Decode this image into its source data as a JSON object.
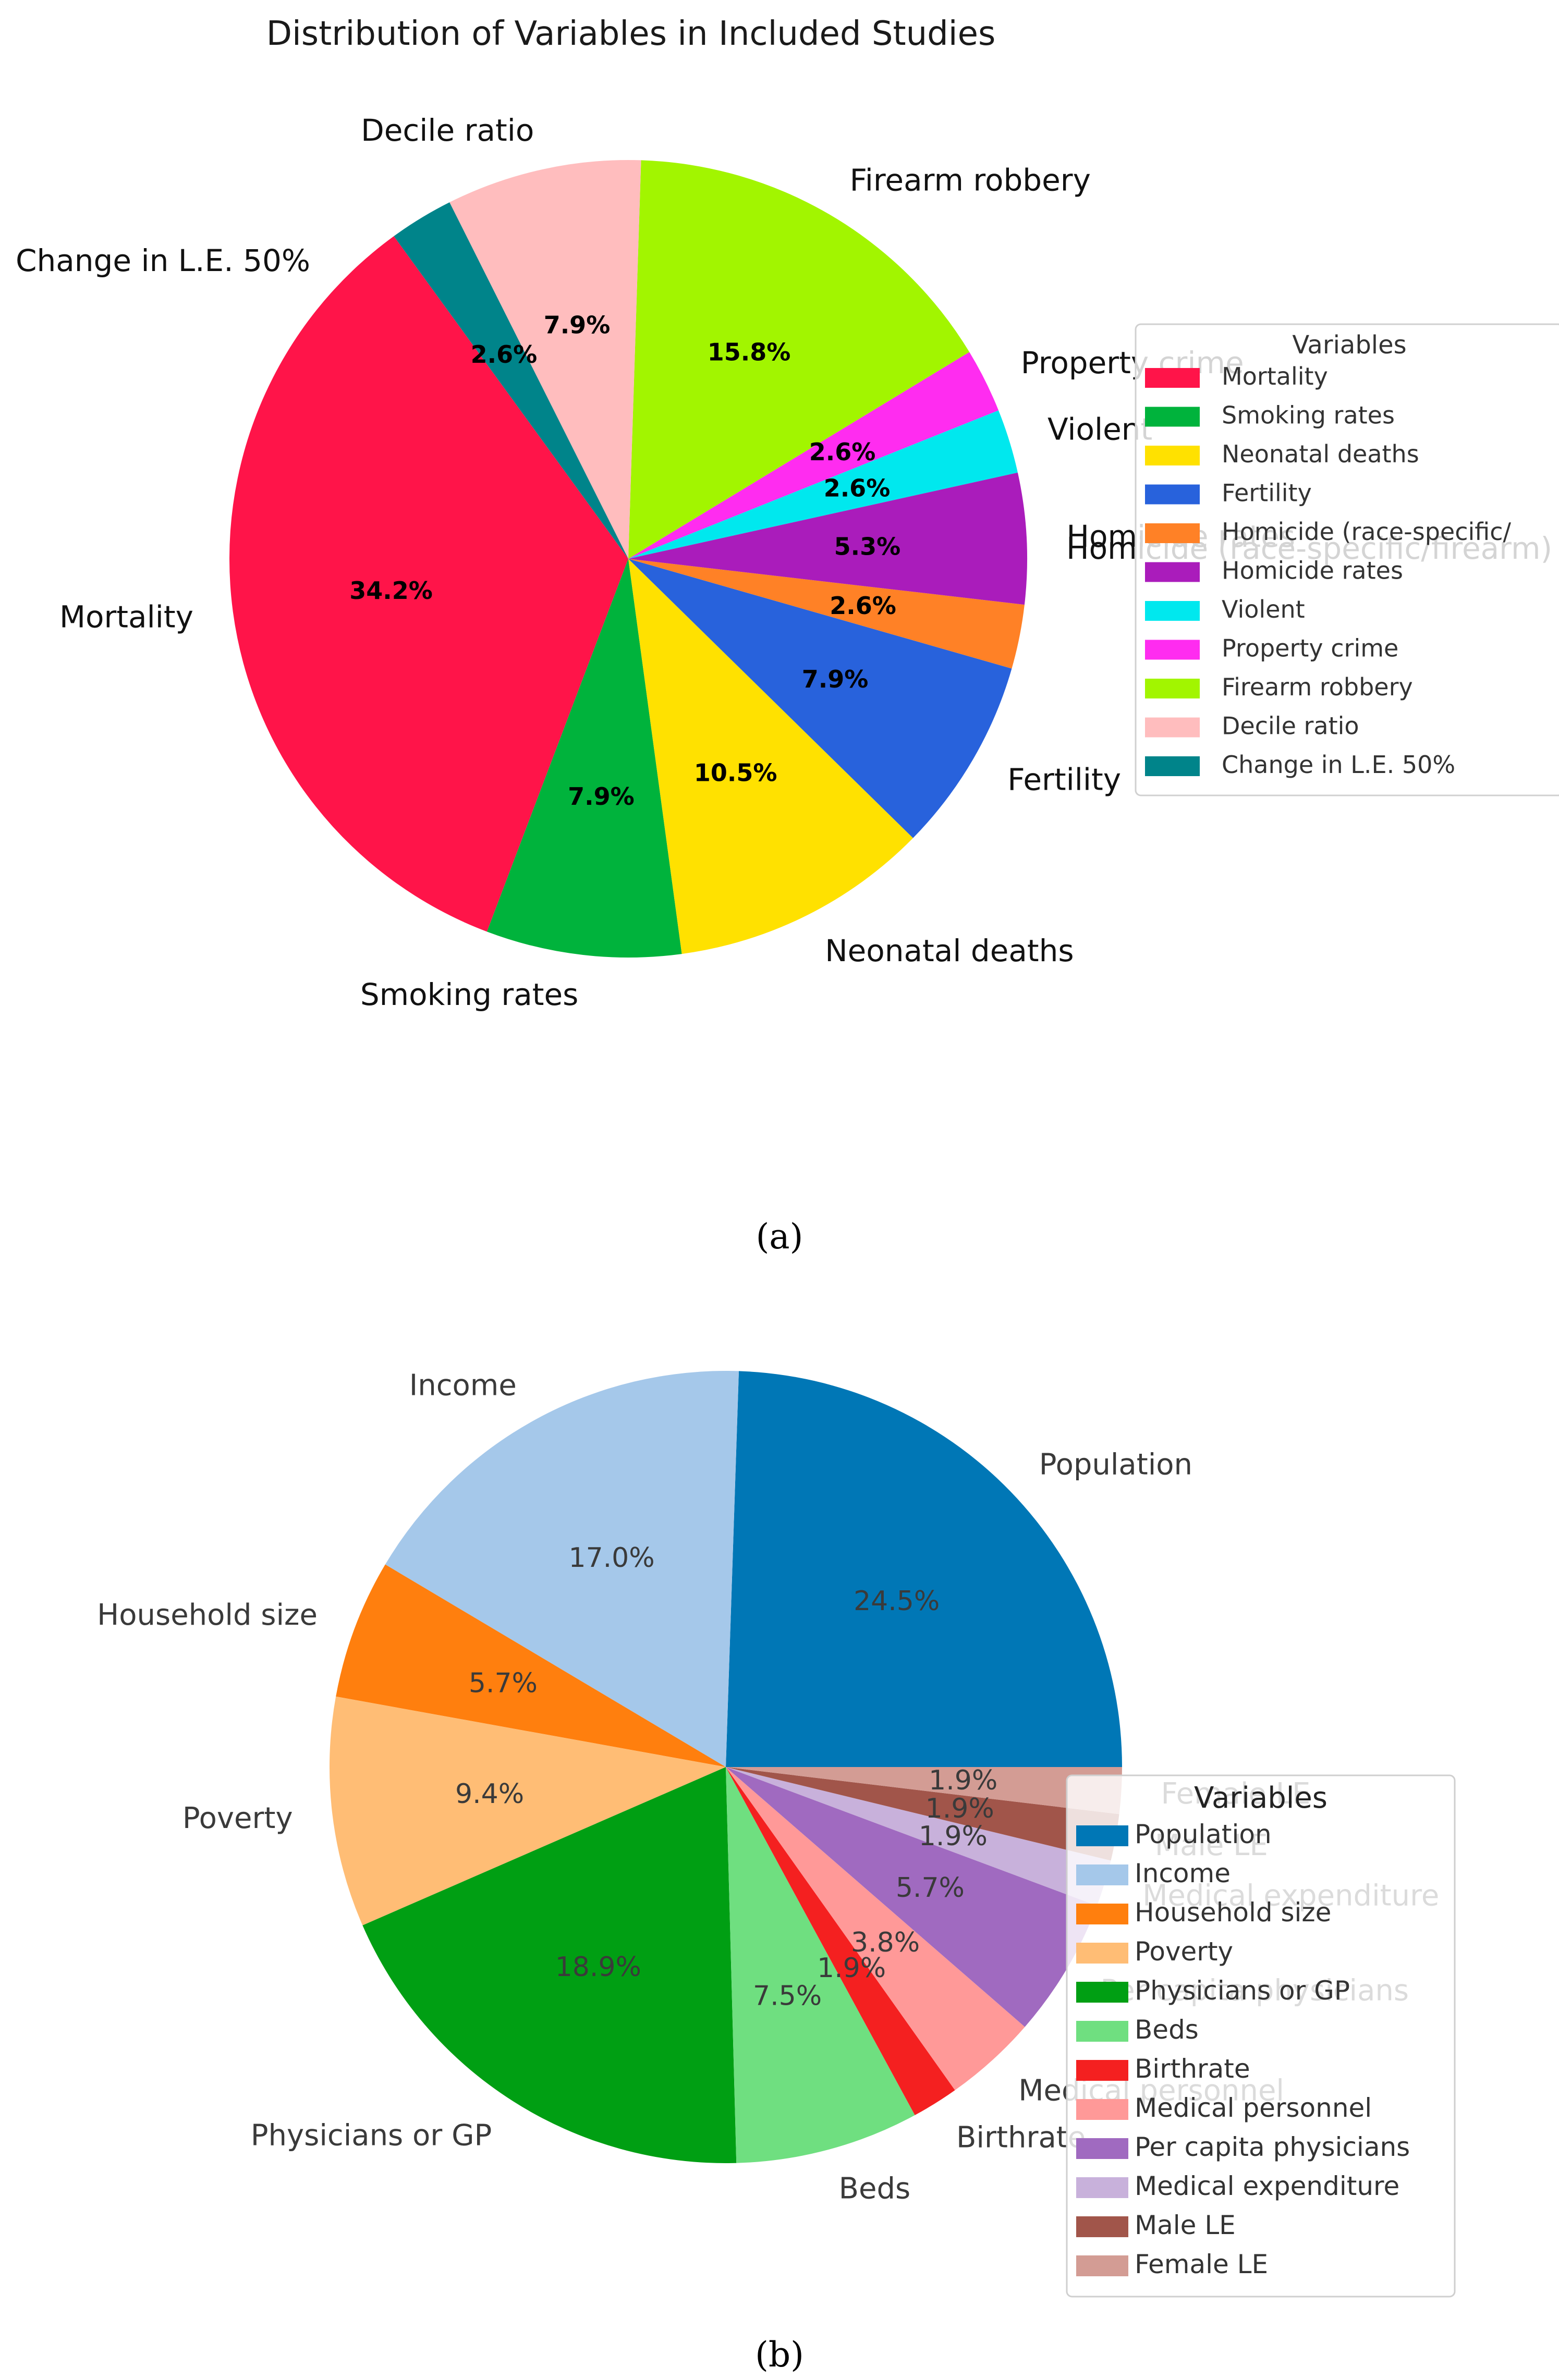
{
  "chart_data": [
    {
      "type": "pie",
      "title": "Distribution of Variables in Included Studies",
      "caption": "(a)",
      "legend_title": "Variables",
      "legend_placement": "right",
      "categories": [
        "Mortality",
        "Smoking rates",
        "Neonatal deaths",
        "Fertility",
        "Homicide (race-specific/",
        "Homicide rates",
        "Violent",
        "Property crime",
        "Firearm robbery",
        "Decile ratio",
        "Change in L.E. 50%"
      ],
      "values": [
        34.2,
        7.9,
        10.5,
        7.9,
        2.6,
        5.3,
        2.6,
        2.6,
        15.8,
        7.9,
        2.6
      ],
      "value_labels": [
        "34.2%",
        "7.9%",
        "10.5%",
        "7.9%",
        "2.6%",
        "5.3%",
        "2.6%",
        "2.6%",
        "15.8%",
        "7.9%",
        "2.6%"
      ],
      "slice_labels": [
        "Mortality",
        "Smoking rates",
        "Neonatal deaths",
        "Fertility",
        "Homicide (race-specific/firearm)",
        "Homicide rates",
        "Violent",
        "Property crime",
        "Firearm robbery",
        "Decile ratio",
        "Change in L.E. 50%"
      ],
      "colors": [
        "#ff1449",
        "#00b33c",
        "#ffe100",
        "#2862dc",
        "#ff8126",
        "#aa1cbb",
        "#00e8ee",
        "#ff2cf0",
        "#a2f500",
        "#ffbdbe",
        "#00848a"
      ],
      "start_angle_deg": 126,
      "direction": "counterclockwise"
    },
    {
      "type": "pie",
      "title": "",
      "caption": "(b)",
      "legend_title": "Variables",
      "legend_placement": "lower right",
      "categories": [
        "Population",
        "Income",
        "Household size",
        "Poverty",
        "Physicians or GP",
        "Beds",
        "Birthrate",
        "Medical personnel",
        "Per capita physicians",
        "Medical expenditure",
        "Male LE",
        "Female LE"
      ],
      "values": [
        24.5,
        17.0,
        5.7,
        9.4,
        18.9,
        7.5,
        1.9,
        3.8,
        5.7,
        1.9,
        1.9,
        1.9
      ],
      "value_labels": [
        "24.5%",
        "17.0%",
        "5.7%",
        "9.4%",
        "18.9%",
        "7.5%",
        "1.9%",
        "3.8%",
        "5.7%",
        "1.9%",
        "1.9%",
        "1.9%"
      ],
      "slice_labels": [
        "Population",
        "Income",
        "Household size",
        "Poverty",
        "Physicians or GP",
        "Beds",
        "Birthrate",
        "Medical personnel",
        "Per capita physicians",
        "Medical expenditure",
        "Male LE",
        "Female LE"
      ],
      "colors": [
        "#0077b6",
        "#a5c8ea",
        "#ff7f0e",
        "#ffbd75",
        "#009f13",
        "#6fdf80",
        "#f42020",
        "#ff9998",
        "#a06ac0",
        "#c8b1db",
        "#a1554a",
        "#d39c94"
      ],
      "start_angle_deg": 0,
      "direction": "counterclockwise"
    }
  ]
}
